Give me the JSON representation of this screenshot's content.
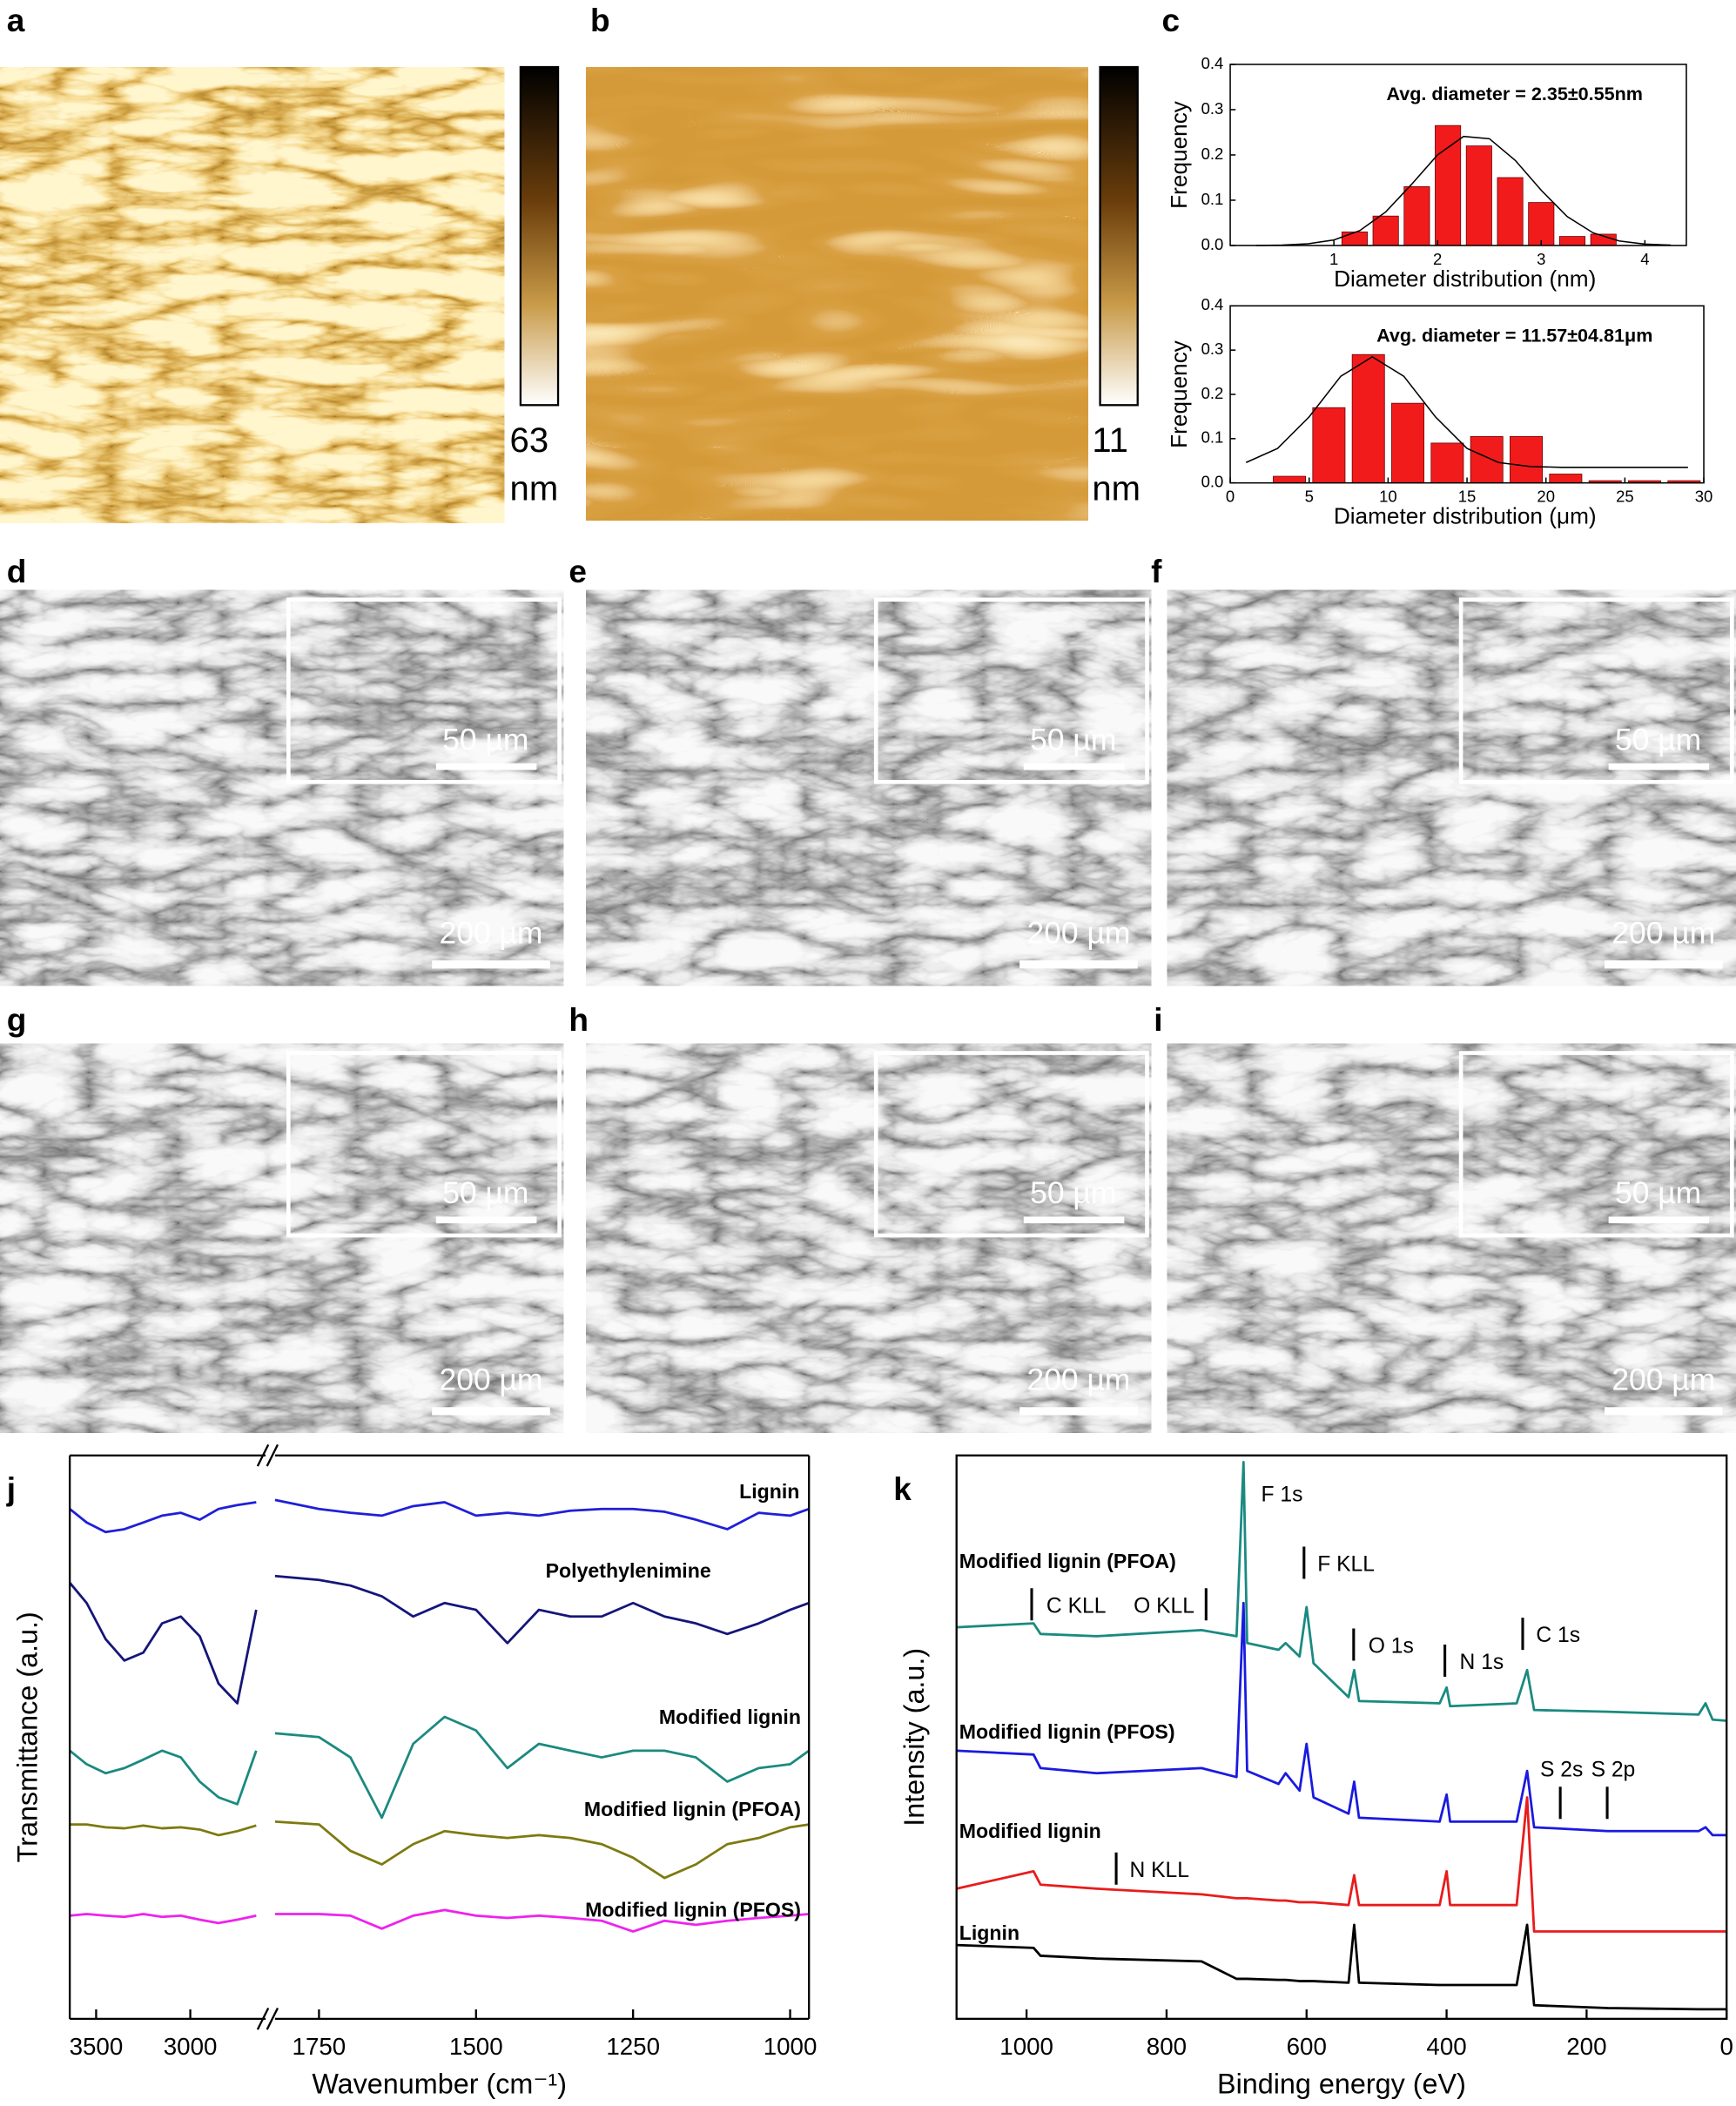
{
  "panels": {
    "labels": [
      "a",
      "b",
      "c",
      "d",
      "e",
      "f",
      "g",
      "h",
      "i",
      "j",
      "k"
    ],
    "colorbars": [
      {
        "max": 63,
        "unit": "nm"
      },
      {
        "max": 11,
        "unit": "nm"
      }
    ],
    "sem": [
      {
        "inset_scale": "50 µm",
        "scale": "200 µm"
      },
      {
        "inset_scale": "50 µm",
        "scale": "200 µm"
      },
      {
        "inset_scale": "50 µm",
        "scale": "200 µm"
      },
      {
        "inset_scale": "50 µm",
        "scale": "200 µm"
      },
      {
        "inset_scale": "50 µm",
        "scale": "200 µm"
      },
      {
        "inset_scale": "50 µm",
        "scale": "200 µm"
      }
    ]
  },
  "chart_data": [
    {
      "type": "bar",
      "annotation": "Avg. diameter = 2.35±0.55nm",
      "x_label": "Diameter distribution (nm)",
      "y_label": "Frequency",
      "color": "#f21b1b",
      "x": [
        1.2,
        1.5,
        1.8,
        2.1,
        2.4,
        2.7,
        3.0,
        3.3,
        3.6
      ],
      "values": [
        0.03,
        0.065,
        0.13,
        0.265,
        0.22,
        0.15,
        0.095,
        0.02,
        0.025
      ],
      "fit": {
        "x": [
          0.25,
          0.5,
          0.75,
          1.0,
          1.25,
          1.5,
          1.75,
          2.0,
          2.25,
          2.5,
          2.75,
          3.0,
          3.25,
          3.5,
          3.75,
          4.0,
          4.25
        ],
        "values": [
          0.0,
          0.001,
          0.004,
          0.012,
          0.033,
          0.074,
          0.135,
          0.2,
          0.241,
          0.236,
          0.188,
          0.122,
          0.064,
          0.028,
          0.01,
          0.003,
          0.001
        ]
      },
      "xlim": [
        0,
        4.4
      ],
      "ylim": [
        0,
        0.4
      ],
      "xticks": [
        1,
        2,
        3,
        4
      ],
      "yticks": [
        {
          "value": 0,
          "label": "0.0"
        },
        0.1,
        0.2,
        0.3,
        0.4
      ]
    },
    {
      "type": "bar",
      "annotation": "Avg. diameter = 11.57±04.81μm",
      "x_label": "Diameter distribution (μm)",
      "y_label": "Frequency",
      "color": "#f21b1b",
      "x": [
        3.75,
        6.25,
        8.75,
        11.25,
        13.75,
        16.25,
        18.75,
        21.25,
        23.75,
        26.25,
        28.75
      ],
      "values": [
        0.015,
        0.17,
        0.29,
        0.18,
        0.09,
        0.105,
        0.105,
        0.02,
        0.005,
        0.005,
        0.005
      ],
      "fit": {
        "x": [
          1,
          3,
          5,
          7,
          9,
          11,
          13,
          15,
          17,
          19,
          21,
          25,
          29
        ],
        "values": [
          0.046,
          0.078,
          0.149,
          0.241,
          0.285,
          0.241,
          0.149,
          0.078,
          0.046,
          0.037,
          0.035,
          0.035,
          0.035
        ]
      },
      "xlim": [
        0,
        30
      ],
      "ylim": [
        0,
        0.4
      ],
      "xticks": [
        0,
        5,
        10,
        15,
        20,
        25,
        30
      ],
      "yticks": [
        {
          "value": 0,
          "label": "0.0"
        },
        0.1,
        0.2,
        0.3,
        0.4
      ]
    },
    {
      "type": "line",
      "x_label": "Wavenumber (cm⁻¹)",
      "y_label": "Transmittance (a.u.)",
      "xlim": [
        3640,
        970
      ],
      "x_break": [
        2600,
        1820
      ],
      "xticks": [
        3500,
        3000,
        1750,
        1500,
        1250,
        1000
      ],
      "ylim": [
        0,
        100
      ],
      "x": [
        3640,
        3550,
        3450,
        3350,
        3250,
        3150,
        3050,
        2950,
        2850,
        2750,
        2650,
        null,
        1820,
        1750,
        1700,
        1650,
        1600,
        1550,
        1500,
        1450,
        1400,
        1350,
        1300,
        1250,
        1200,
        1150,
        1100,
        1050,
        1000,
        970
      ],
      "series": [
        {
          "name": "Lignin",
          "color": "#1f1fd8",
          "values": [
            90.5,
            88.1,
            86.4,
            86.9,
            88.1,
            89.3,
            89.8,
            88.6,
            90.5,
            91.2,
            91.7,
            null,
            92.1,
            90.5,
            89.8,
            89.3,
            91.0,
            91.7,
            89.3,
            89.8,
            89.3,
            90.2,
            90.5,
            90.5,
            90.0,
            88.6,
            86.9,
            89.8,
            89.3,
            90.5
          ]
        },
        {
          "name": "Polyethylenimine",
          "color": "#15157a",
          "values": [
            77.4,
            73.8,
            67.4,
            63.6,
            65.0,
            70.2,
            71.4,
            67.9,
            59.5,
            56.0,
            72.6,
            null,
            78.6,
            77.9,
            76.9,
            75.0,
            71.4,
            73.8,
            72.6,
            66.7,
            72.6,
            71.4,
            71.4,
            73.8,
            71.4,
            70.2,
            68.3,
            70.2,
            72.6,
            73.8
          ]
        },
        {
          "name": "Modified lignin",
          "color": "#1a8a80",
          "values": [
            47.6,
            45.2,
            43.6,
            44.5,
            46.0,
            47.6,
            46.4,
            42.1,
            39.3,
            38.1,
            47.6,
            null,
            50.7,
            50.0,
            46.4,
            35.7,
            48.8,
            53.6,
            51.2,
            44.5,
            48.8,
            47.6,
            46.4,
            47.6,
            47.6,
            46.4,
            42.1,
            44.5,
            45.2,
            47.6
          ]
        },
        {
          "name": "Modified lignin (PFOA)",
          "color": "#7d7a10",
          "values": [
            34.5,
            34.5,
            34.0,
            33.8,
            34.3,
            33.8,
            34.0,
            33.6,
            32.6,
            33.3,
            34.3,
            null,
            35.0,
            34.5,
            29.8,
            27.4,
            31.0,
            33.3,
            32.6,
            32.1,
            32.6,
            32.1,
            31.0,
            28.6,
            25.0,
            27.4,
            31.0,
            32.1,
            34.0,
            34.5
          ]
        },
        {
          "name": "Modified lignin (PFOS)",
          "color": "#ee22ee",
          "values": [
            18.3,
            18.6,
            18.3,
            18.1,
            18.6,
            18.1,
            18.3,
            17.6,
            17.0,
            17.6,
            18.3,
            null,
            18.6,
            18.6,
            18.3,
            16.0,
            18.3,
            19.3,
            18.3,
            17.9,
            18.3,
            17.9,
            17.4,
            15.5,
            17.4,
            16.7,
            17.4,
            17.9,
            18.3,
            18.6
          ]
        }
      ]
    },
    {
      "type": "line",
      "x_label": "Binding energy (eV)",
      "y_label": "Intensity (a.u.)",
      "xlim": [
        1100,
        0
      ],
      "xticks": [
        1000,
        800,
        600,
        400,
        200,
        0
      ],
      "ylim": [
        0,
        100
      ],
      "x": [
        1100,
        990,
        980,
        900,
        750,
        700,
        690,
        685,
        640,
        630,
        610,
        600,
        590,
        540,
        532,
        525,
        410,
        400,
        395,
        300,
        285,
        275,
        170,
        40,
        30,
        20,
        0
      ],
      "series": [
        {
          "name": "Modified lignin (PFOA)",
          "color": "#1a8a80",
          "values": [
            69.5,
            70.2,
            68.3,
            67.9,
            69.0,
            67.9,
            98.8,
            66.7,
            65.5,
            66.7,
            64.3,
            73.1,
            63.1,
            57.1,
            61.9,
            56.4,
            56.0,
            58.8,
            55.5,
            56.0,
            61.9,
            54.8,
            54.5,
            54.0,
            56.0,
            53.1,
            52.9
          ]
        },
        {
          "name": "Modified lignin (PFOS)",
          "color": "#1a1ae0",
          "values": [
            47.6,
            46.9,
            44.5,
            43.6,
            44.5,
            42.9,
            73.8,
            44.0,
            41.7,
            43.6,
            40.5,
            48.8,
            39.3,
            36.4,
            42.1,
            35.7,
            35.0,
            39.8,
            35.0,
            35.0,
            44.0,
            34.0,
            33.3,
            33.3,
            34.0,
            32.6,
            32.6
          ]
        },
        {
          "name": "Modified lignin",
          "color": "#e81c1c",
          "values": [
            23.1,
            26.2,
            23.8,
            23.1,
            22.1,
            21.4,
            21.4,
            21.4,
            21.0,
            21.0,
            20.7,
            20.7,
            20.7,
            20.2,
            25.5,
            20.2,
            20.2,
            26.2,
            20.2,
            20.2,
            39.3,
            15.5,
            15.5,
            15.5,
            15.5,
            15.5,
            15.5
          ]
        },
        {
          "name": "Lignin",
          "color": "#000000",
          "values": [
            13.1,
            12.6,
            11.2,
            10.7,
            10.2,
            7.1,
            7.1,
            7.1,
            6.9,
            6.9,
            6.7,
            6.7,
            6.7,
            6.4,
            16.7,
            6.4,
            6.0,
            6.0,
            6.0,
            6.0,
            16.7,
            2.4,
            1.9,
            1.7,
            1.7,
            1.7,
            1.7
          ]
        }
      ],
      "annotations": [
        "F 1s",
        "C KLL",
        "O KLL",
        "F KLL",
        "O 1s",
        "N 1s",
        "C 1s",
        "S 2s",
        "S 2p",
        "N KLL"
      ]
    }
  ]
}
